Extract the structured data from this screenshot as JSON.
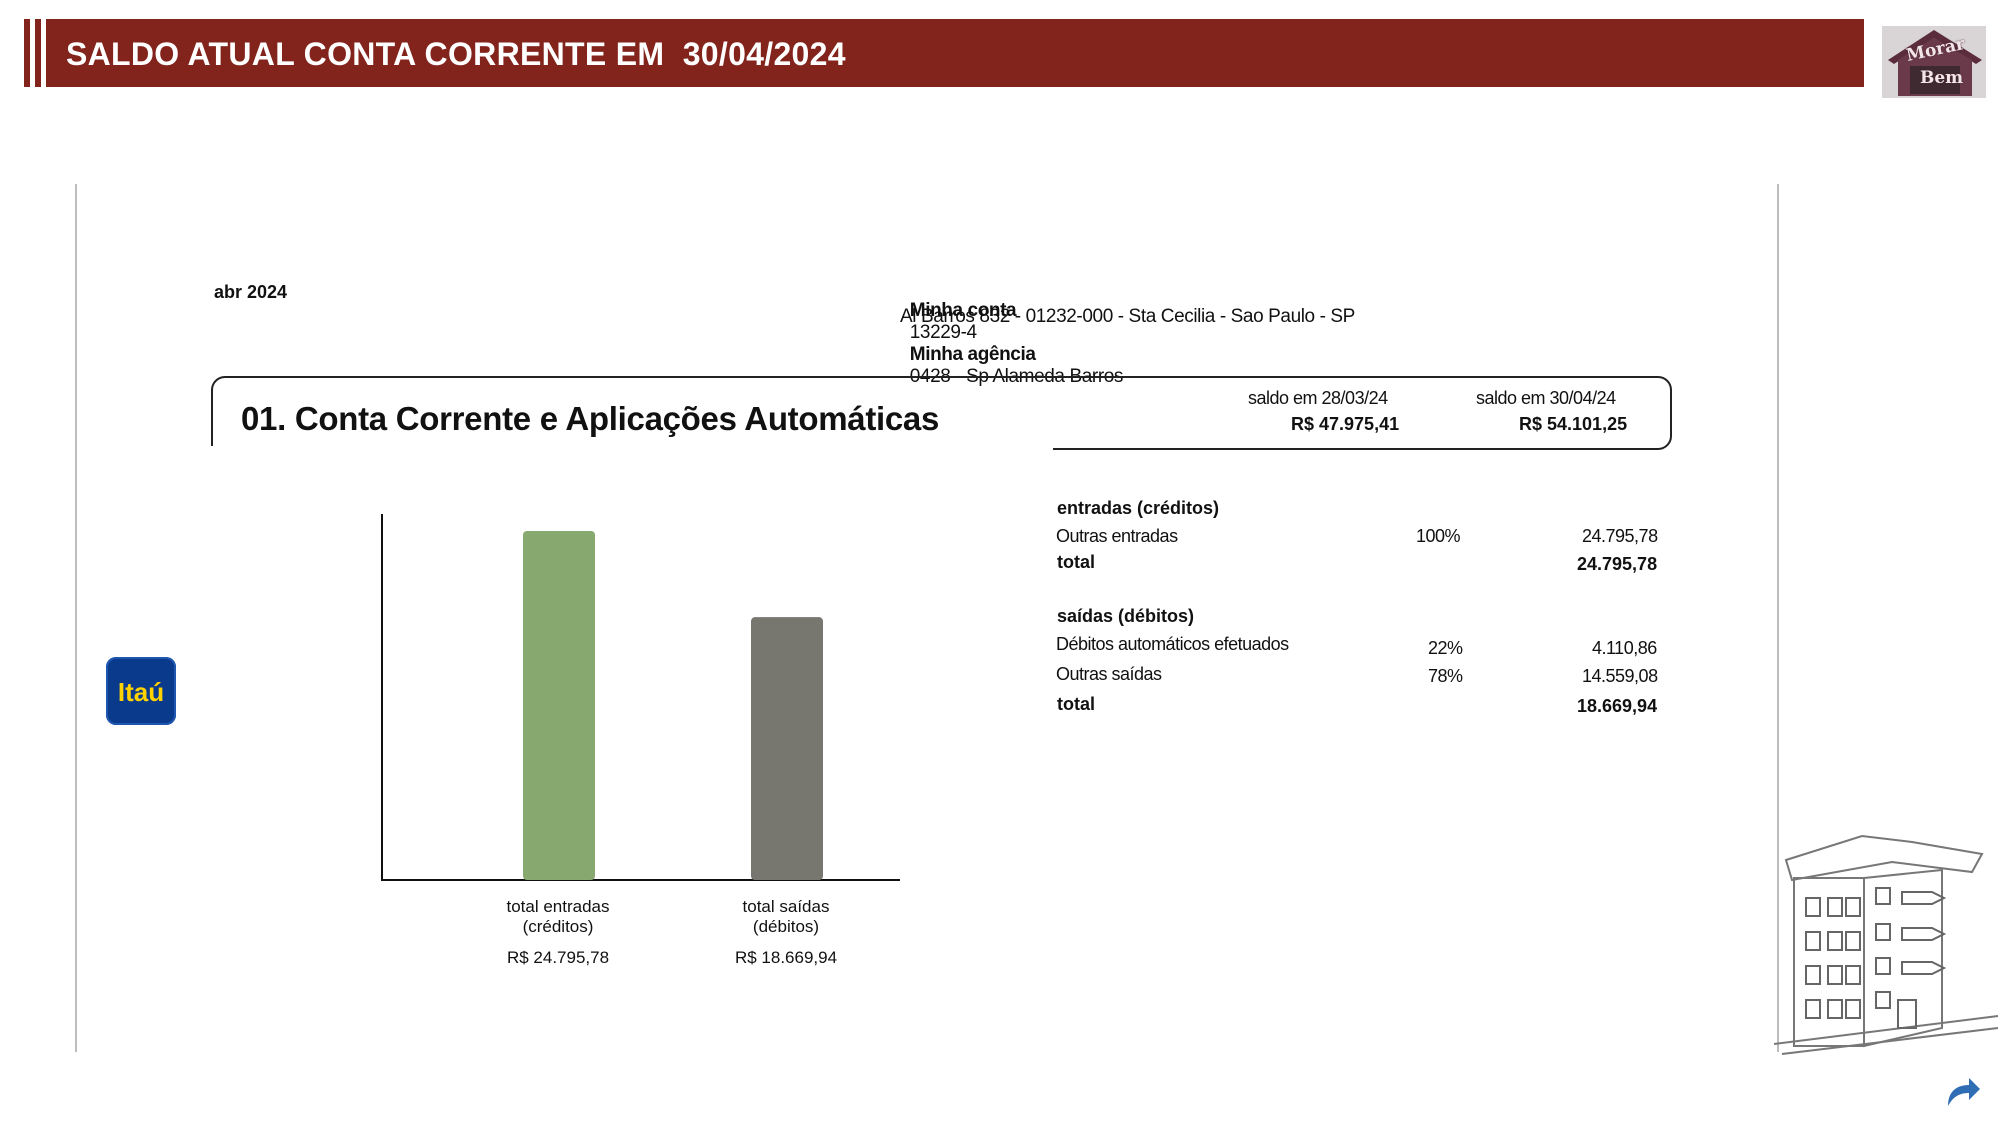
{
  "header": {
    "title": "SALDO ATUAL CONTA CORRENTE EM  30/04/2024"
  },
  "logo": {
    "line1": "Morar",
    "line2": "Bem"
  },
  "statement": {
    "month": "abr 2024",
    "account_label": "Minha conta",
    "account_number": "13229-4",
    "agency_label": "Minha agência",
    "agency_value": "0428 - Sp Alameda Barros",
    "address": "Al Barros 832 - 01232-000 - Sta Cecilia - Sao Paulo - SP",
    "section_title": "01. Conta Corrente e Aplicações Automáticas",
    "prev_balance_label": "saldo em 28/03/24",
    "prev_balance_value": "R$ 47.975,41",
    "curr_balance_label": "saldo em 30/04/24",
    "curr_balance_value": "R$ 54.101,25",
    "credits": {
      "heading": "entradas (créditos)",
      "rows": [
        {
          "label": "Outras entradas",
          "pct": "100%",
          "value": "24.795,78"
        }
      ],
      "total_label": "total",
      "total_value": "24.795,78"
    },
    "debits": {
      "heading": "saídas (débitos)",
      "rows": [
        {
          "label": "Débitos automáticos efetuados",
          "pct": "22%",
          "value": "4.110,86"
        },
        {
          "label": "Outras saídas",
          "pct": "78%",
          "value": "14.559,08"
        }
      ],
      "total_label": "total",
      "total_value": "18.669,94"
    }
  },
  "bank_logo": {
    "text": "Itaú"
  },
  "chart_data": {
    "type": "bar",
    "title": "",
    "xlabel": "",
    "ylabel": "",
    "ylim": [
      0,
      26000
    ],
    "grid": false,
    "categories": [
      "total entradas (créditos)",
      "total saídas (débitos)"
    ],
    "category_lines": [
      [
        "total entradas",
        "(créditos)"
      ],
      [
        "total saídas",
        "(débitos)"
      ]
    ],
    "values": [
      24795.78,
      18669.94
    ],
    "value_labels": [
      "R$ 24.795,78",
      "R$ 18.669,94"
    ],
    "colors": [
      "#87a96f",
      "#77766f"
    ]
  },
  "colors": {
    "header": "#82231c",
    "credit_bar": "#87a96f",
    "debit_bar": "#77766f",
    "bank_blue": "#0a3a8c",
    "bank_yellow": "#ffd200"
  }
}
